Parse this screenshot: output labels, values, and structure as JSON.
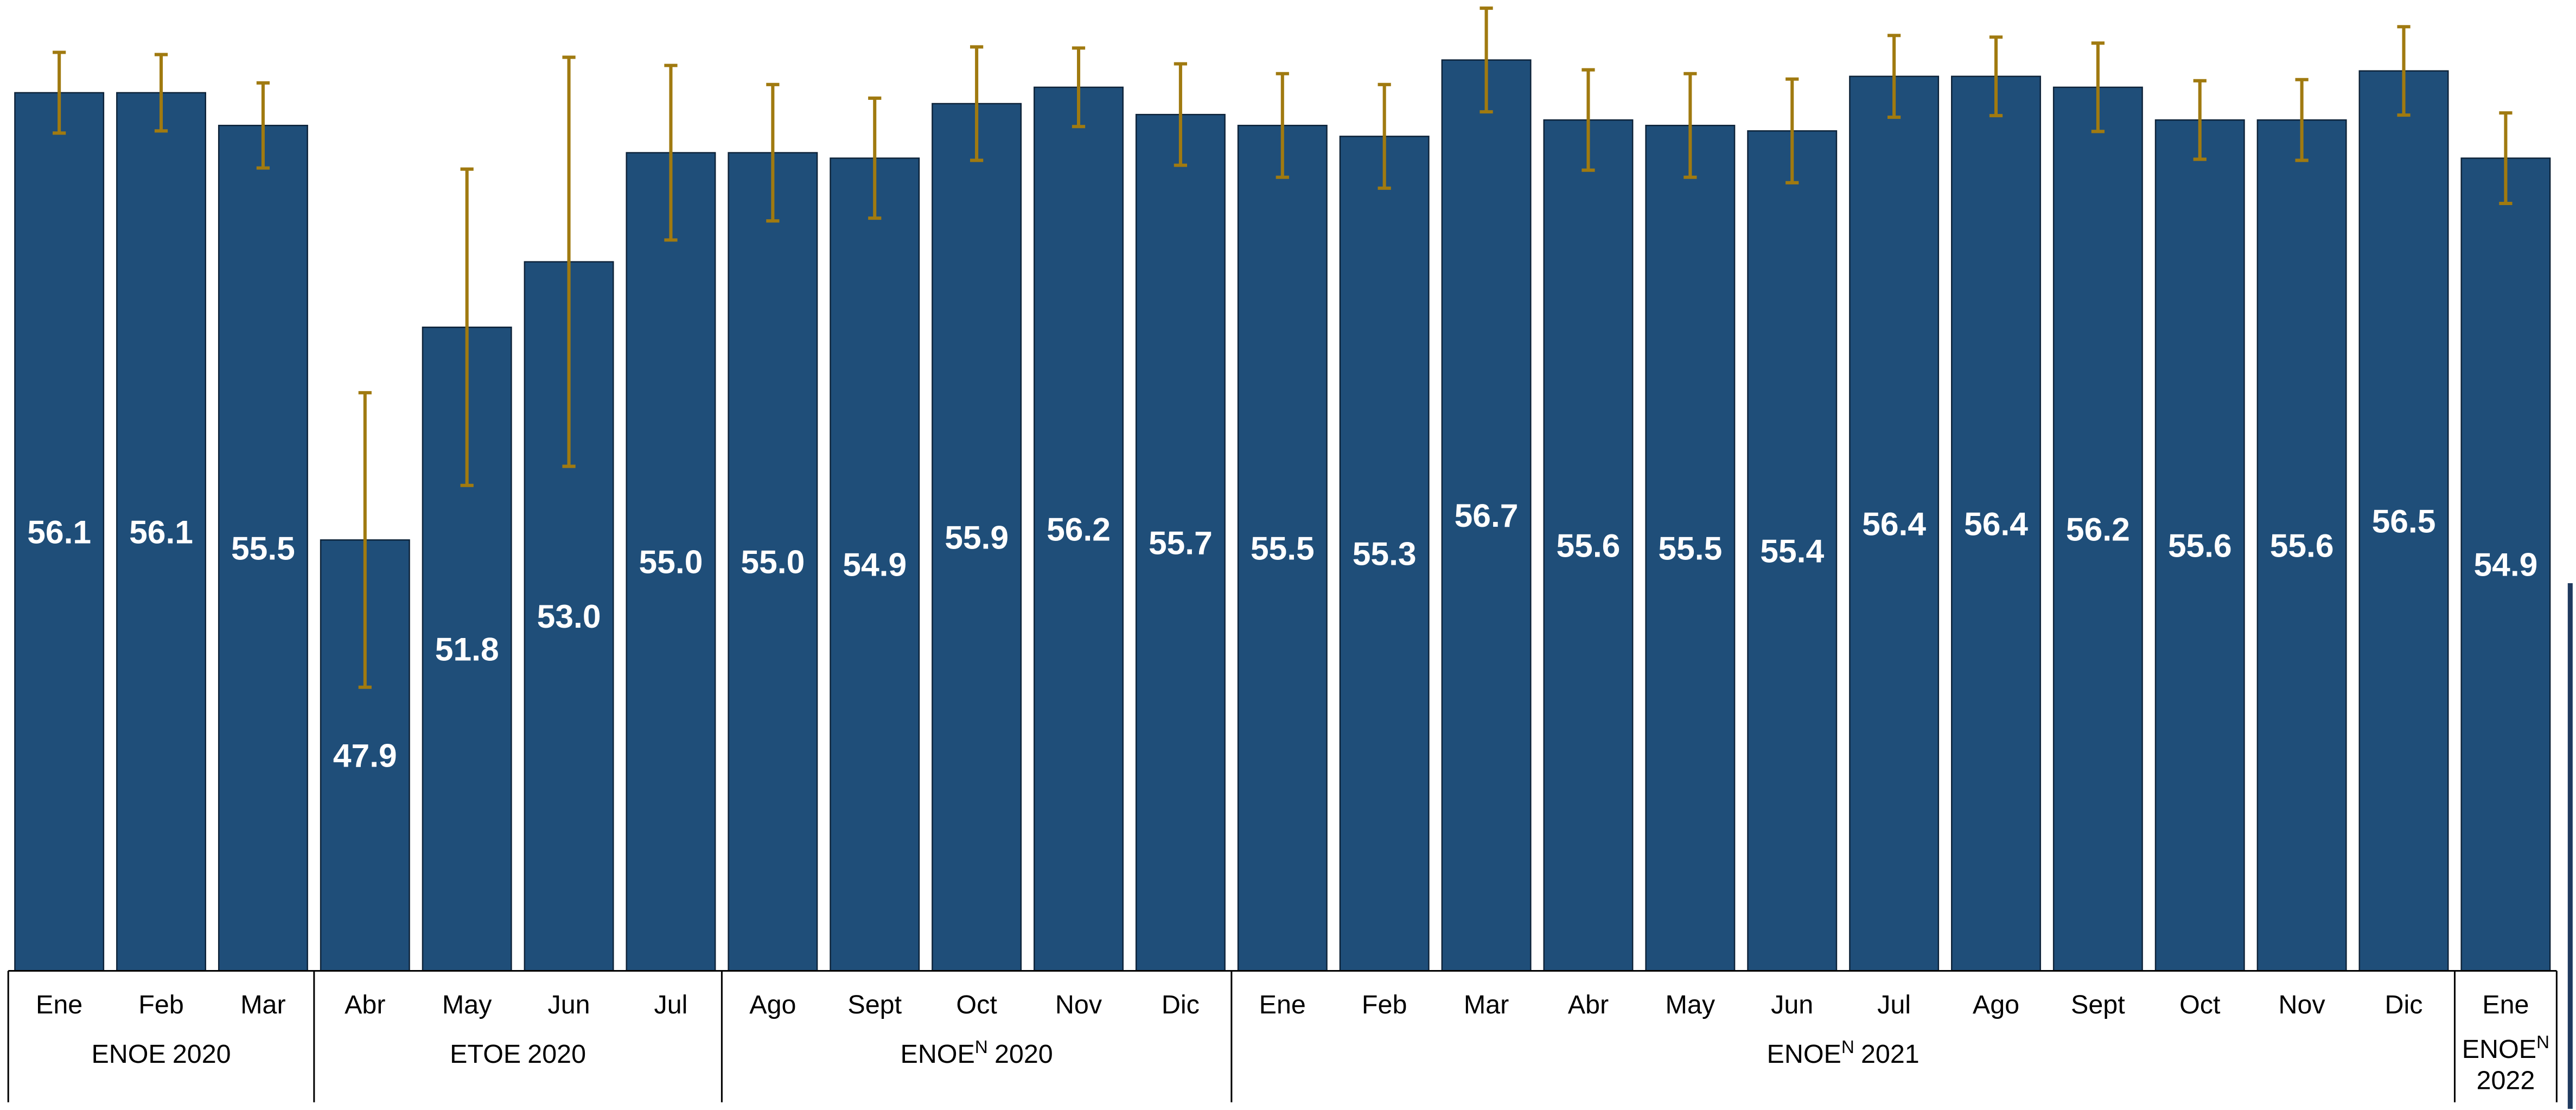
{
  "chart_data": {
    "type": "bar",
    "categories": [
      "Ene",
      "Feb",
      "Mar",
      "Abr",
      "May",
      "Jun",
      "Jul",
      "Ago",
      "Sept",
      "Oct",
      "Nov",
      "Dic",
      "Ene",
      "Feb",
      "Mar",
      "Abr",
      "May",
      "Jun",
      "Jul",
      "Ago",
      "Sept",
      "Oct",
      "Nov",
      "Dic",
      "Ene"
    ],
    "values": [
      56.1,
      56.1,
      55.5,
      47.9,
      51.8,
      53.0,
      55.0,
      55.0,
      54.9,
      55.9,
      56.2,
      55.7,
      55.5,
      55.3,
      56.7,
      55.6,
      55.5,
      55.4,
      56.4,
      56.4,
      56.2,
      55.6,
      55.6,
      56.5,
      54.9
    ],
    "value_labels": [
      "56.1",
      "56.1",
      "55.5",
      "47.9",
      "51.8",
      "53.0",
      "55.0",
      "55.0",
      "54.9",
      "55.9",
      "56.2",
      "55.7",
      "55.5",
      "55.3",
      "56.7",
      "55.6",
      "55.5",
      "55.4",
      "56.4",
      "56.4",
      "56.2",
      "55.6",
      "55.6",
      "56.5",
      "54.9"
    ],
    "errors": [
      0.74,
      0.7,
      0.78,
      2.7,
      2.9,
      3.75,
      1.6,
      1.25,
      1.1,
      1.04,
      0.72,
      0.93,
      0.95,
      0.95,
      0.95,
      0.92,
      0.95,
      0.95,
      0.75,
      0.72,
      0.81,
      0.72,
      0.74,
      0.81,
      0.83
    ],
    "color": "#1f4e79",
    "error_color": "#a07a10",
    "ylim": [
      40,
      57.8
    ],
    "groups": [
      {
        "name": "ENOE",
        "year": "2020",
        "size": 3
      },
      {
        "name": "ETOE",
        "year": "2020",
        "size": 4
      },
      {
        "name": "ENOE",
        "sup": "N",
        "year": "2020",
        "size": 5
      },
      {
        "name": "ENOE",
        "sup": "N",
        "year": "2021",
        "size": 12
      },
      {
        "name": "ENOE",
        "sup": "N",
        "year": "2022",
        "size": 1
      }
    ]
  }
}
